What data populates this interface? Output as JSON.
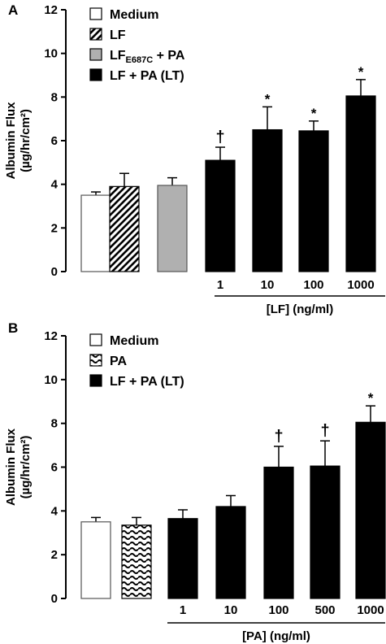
{
  "colors": {
    "black": "#000000",
    "gray": "#b0b0b0",
    "white": "#ffffff"
  },
  "chart_data": [
    {
      "panel": "A",
      "type": "bar",
      "ylabel_line1": "Albumin Flux",
      "ylabel_line2": "(µg/hr/cm²)",
      "ylim": [
        0,
        12
      ],
      "yticks": [
        "0",
        "2",
        "4",
        "6",
        "8",
        "10",
        "12"
      ],
      "grid": false,
      "legend_placement": "top-left",
      "legend": [
        {
          "label": "Medium",
          "pattern": "white"
        },
        {
          "label": "LF",
          "pattern": "hatch"
        },
        {
          "label": "LF",
          "sub": "E687C",
          "suffix": " + PA",
          "pattern": "gray"
        },
        {
          "label": "LF + PA (LT)",
          "pattern": "black"
        }
      ],
      "bars": [
        {
          "label": "",
          "value": 3.5,
          "error": 0.15,
          "pattern": "white",
          "marker": ""
        },
        {
          "label": "",
          "value": 3.9,
          "error": 0.6,
          "pattern": "hatch",
          "marker": ""
        },
        {
          "label": "",
          "value": 3.95,
          "error": 0.35,
          "pattern": "gray",
          "marker": ""
        },
        {
          "label": "1",
          "value": 5.1,
          "error": 0.6,
          "pattern": "black",
          "marker": "†"
        },
        {
          "label": "10",
          "value": 6.5,
          "error": 1.05,
          "pattern": "black",
          "marker": "*"
        },
        {
          "label": "100",
          "value": 6.45,
          "error": 0.45,
          "pattern": "black",
          "marker": "*"
        },
        {
          "label": "1000",
          "value": 8.05,
          "error": 0.75,
          "pattern": "black",
          "marker": "*"
        }
      ],
      "group_label": "[LF] (ng/ml)"
    },
    {
      "panel": "B",
      "type": "bar",
      "ylabel_line1": "Albumin Flux",
      "ylabel_line2": "(µg/hr/cm²)",
      "ylim": [
        0,
        12
      ],
      "yticks": [
        "0",
        "2",
        "4",
        "6",
        "8",
        "10",
        "12"
      ],
      "grid": false,
      "legend_placement": "top-left",
      "legend": [
        {
          "label": "Medium",
          "pattern": "white"
        },
        {
          "label": "PA",
          "pattern": "wave"
        },
        {
          "label": "LF + PA (LT)",
          "pattern": "black"
        }
      ],
      "bars": [
        {
          "label": "",
          "value": 3.5,
          "error": 0.2,
          "pattern": "white",
          "marker": ""
        },
        {
          "label": "",
          "value": 3.35,
          "error": 0.35,
          "pattern": "wave",
          "marker": ""
        },
        {
          "label": "1",
          "value": 3.65,
          "error": 0.4,
          "pattern": "black",
          "marker": ""
        },
        {
          "label": "10",
          "value": 4.2,
          "error": 0.5,
          "pattern": "black",
          "marker": ""
        },
        {
          "label": "100",
          "value": 6.0,
          "error": 0.95,
          "pattern": "black",
          "marker": "†"
        },
        {
          "label": "500",
          "value": 6.05,
          "error": 1.15,
          "pattern": "black",
          "marker": "†"
        },
        {
          "label": "1000",
          "value": 8.05,
          "error": 0.75,
          "pattern": "black",
          "marker": "*"
        }
      ],
      "group_label": "[PA] (ng/ml)"
    }
  ]
}
